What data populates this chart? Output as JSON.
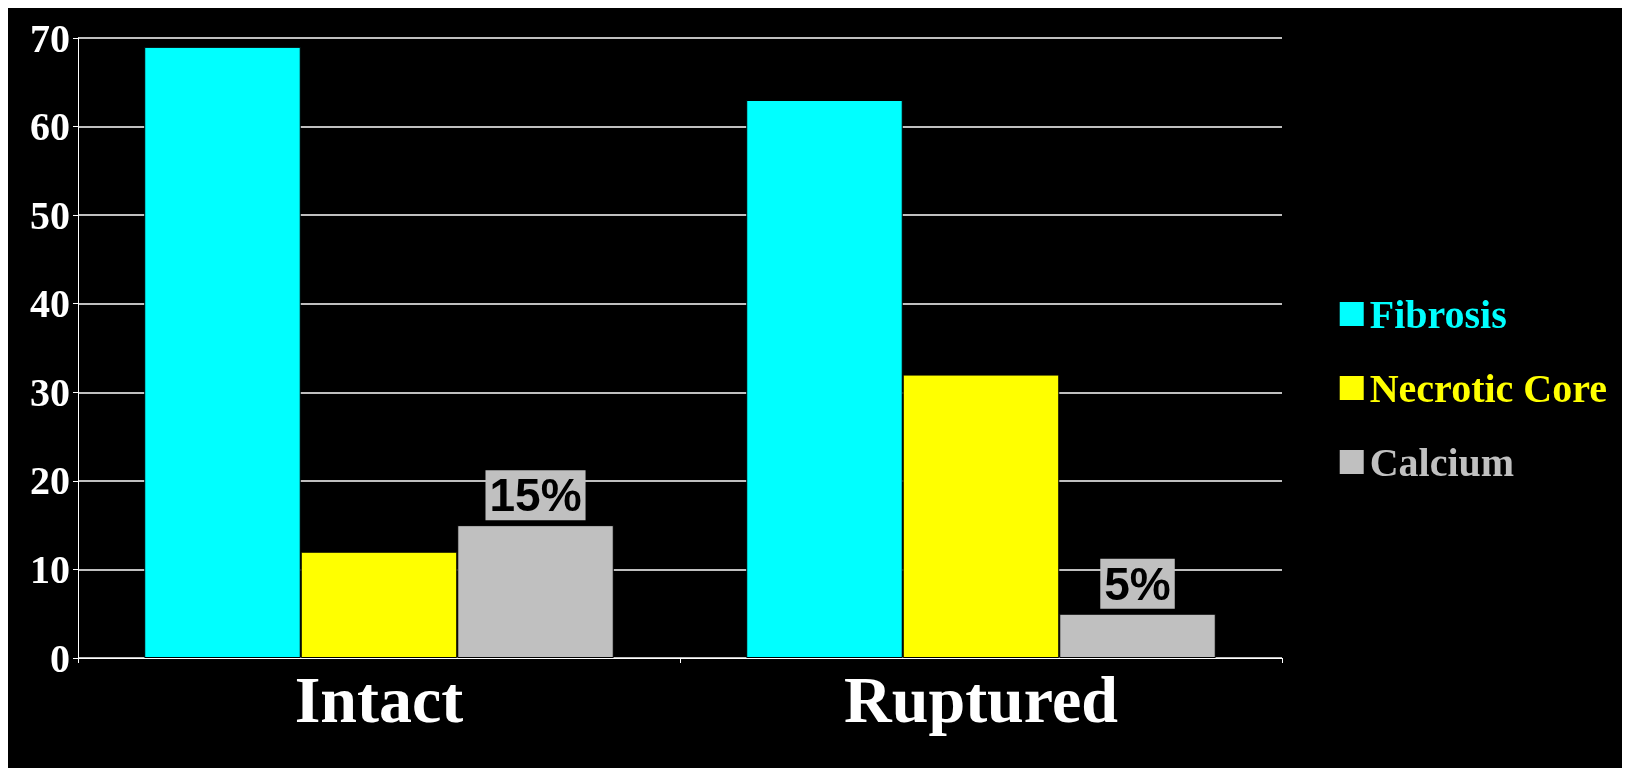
{
  "chart_data": {
    "type": "bar",
    "categories": [
      "Intact",
      "Ruptured"
    ],
    "series": [
      {
        "name": "Fibrosis",
        "color": "#00ffff",
        "values": [
          69,
          63
        ]
      },
      {
        "name": "Necrotic Core",
        "color": "#ffff00",
        "values": [
          12,
          32
        ]
      },
      {
        "name": "Calcium",
        "color": "#c0c0c0",
        "values": [
          15,
          5
        ],
        "value_labels": [
          "15%",
          "5%"
        ]
      }
    ],
    "ylim": [
      0,
      70
    ],
    "yticks": [
      0,
      10,
      20,
      30,
      40,
      50,
      60,
      70
    ],
    "grid": "y",
    "legend": "right"
  }
}
